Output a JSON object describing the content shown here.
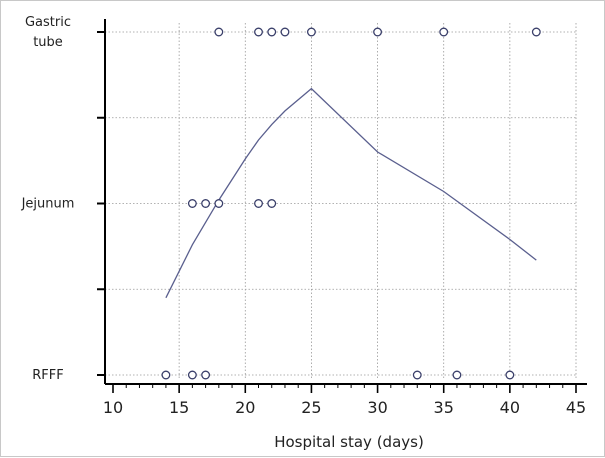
{
  "chart_data": {
    "type": "scatter",
    "title": "",
    "xlabel": "Hospital stay (days)",
    "ylabel": "",
    "xlim": [
      10,
      45
    ],
    "xticks": [
      "10",
      "15",
      "20",
      "25",
      "30",
      "35",
      "40",
      "45"
    ],
    "categories": [
      "RFFF",
      "Jejunum",
      "Gastric tube"
    ],
    "category_labels": [
      [
        "RFFF"
      ],
      [
        "Jejunum"
      ],
      [
        "Gastric",
        "tube"
      ]
    ],
    "grid": true,
    "colors": {
      "line": "#5a5f8e",
      "points": "#3a3f6a",
      "grid": "#999999",
      "axis": "#000000"
    },
    "points": [
      {
        "category": "Gastric tube",
        "x": [
          18,
          21,
          22,
          23,
          25,
          30,
          35,
          42
        ]
      },
      {
        "category": "Jejunum",
        "x": [
          16,
          17,
          18,
          21,
          22
        ]
      },
      {
        "category": "RFFF",
        "x": [
          14,
          16,
          17,
          33,
          36,
          40
        ]
      }
    ],
    "fit_line": {
      "x": [
        14,
        16,
        18,
        20,
        21,
        22,
        23,
        25,
        30,
        35,
        40,
        42
      ],
      "y": [
        0.45,
        0.76,
        1.02,
        1.26,
        1.37,
        1.46,
        1.54,
        1.67,
        1.3,
        1.07,
        0.79,
        0.67
      ]
    }
  }
}
